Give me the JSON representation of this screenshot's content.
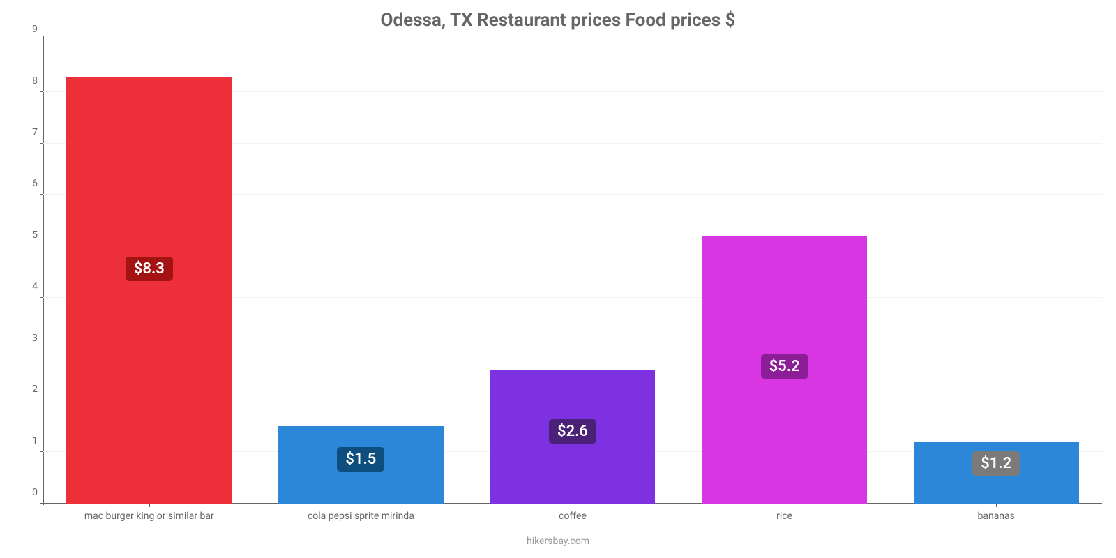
{
  "chart": {
    "type": "bar",
    "title": "Odessa, TX Restaurant prices Food prices $",
    "title_fontsize": 26,
    "title_color": "#666666",
    "footer": "hikersbay.com",
    "footer_color": "#999999",
    "footer_fontsize": 14,
    "background_color": "#ffffff",
    "grid_color": "#f3f3f3",
    "axis_color": "#666666",
    "tick_label_color": "#666666",
    "tick_label_fontsize": 14,
    "value_label_fontsize": 22,
    "value_label_text_color": "#ffffff",
    "ylim": [
      0,
      9
    ],
    "ytick_step": 1,
    "yticks": [
      0,
      1,
      2,
      3,
      4,
      5,
      6,
      7,
      8,
      9
    ],
    "bar_width_ratio": 0.78,
    "bars": [
      {
        "category": "mac burger king or similar bar",
        "value": 8.3,
        "display": "$8.3",
        "bar_color": "#ed2f3a",
        "badge_bg": "#a31313",
        "badge_bottom_pct": 48
      },
      {
        "category": "cola pepsi sprite mirinda",
        "value": 1.5,
        "display": "$1.5",
        "bar_color": "#2c87d8",
        "badge_bg": "#0d4e7e",
        "badge_bottom_pct": 7
      },
      {
        "category": "coffee",
        "value": 2.6,
        "display": "$2.6",
        "bar_color": "#7e31e0",
        "badge_bg": "#4a2177",
        "badge_bottom_pct": 13
      },
      {
        "category": "rice",
        "value": 5.2,
        "display": "$5.2",
        "bar_color": "#d936e3",
        "badge_bg": "#8b1d97",
        "badge_bottom_pct": 27
      },
      {
        "category": "bananas",
        "value": 1.2,
        "display": "$1.2",
        "bar_color": "#2c87d8",
        "badge_bg": "#7a7a7a",
        "badge_bottom_pct": 6
      }
    ]
  }
}
